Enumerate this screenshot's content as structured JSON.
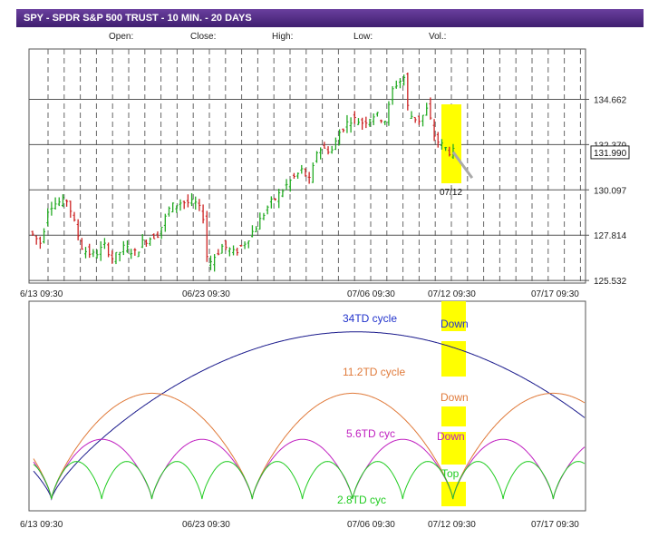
{
  "header": {
    "title": "SPY - SPDR S&P 500 TRUST - 10 MIN. - 20 DAYS",
    "fields": [
      "Open:",
      "Close:",
      "High:",
      "Low:",
      "Vol.:"
    ]
  },
  "chart_data": [
    {
      "type": "candlestick",
      "title": "",
      "y_ticks": [
        134.662,
        132.379,
        130.097,
        127.814,
        125.532
      ],
      "ylim": [
        125.4,
        137.2
      ],
      "x_ticks": [
        "6/13 09:30",
        "06/23 09:30",
        "07/06 09:30",
        "07/12 09:30",
        "07/17 09:30"
      ],
      "last_price": "131.990",
      "annotation": "07/12",
      "anchors": [
        {
          "x": 0,
          "y": 128.0
        },
        {
          "x": 3,
          "y": 127.4
        },
        {
          "x": 5,
          "y": 129.3
        },
        {
          "x": 10,
          "y": 129.6
        },
        {
          "x": 12,
          "y": 128.3
        },
        {
          "x": 14,
          "y": 127.1
        },
        {
          "x": 17,
          "y": 126.8
        },
        {
          "x": 20,
          "y": 127.3
        },
        {
          "x": 22,
          "y": 126.6
        },
        {
          "x": 25,
          "y": 127.2
        },
        {
          "x": 28,
          "y": 126.9
        },
        {
          "x": 30,
          "y": 127.5
        },
        {
          "x": 34,
          "y": 127.9
        },
        {
          "x": 37,
          "y": 129.2
        },
        {
          "x": 40,
          "y": 129.5
        },
        {
          "x": 44,
          "y": 129.4
        },
        {
          "x": 46,
          "y": 128.7
        },
        {
          "x": 47,
          "y": 126.3
        },
        {
          "x": 49,
          "y": 126.8
        },
        {
          "x": 51,
          "y": 127.3
        },
        {
          "x": 54,
          "y": 126.9
        },
        {
          "x": 57,
          "y": 127.5
        },
        {
          "x": 60,
          "y": 128.3
        },
        {
          "x": 63,
          "y": 129.3
        },
        {
          "x": 66,
          "y": 129.9
        },
        {
          "x": 69,
          "y": 130.6
        },
        {
          "x": 72,
          "y": 131.1
        },
        {
          "x": 74,
          "y": 130.5
        },
        {
          "x": 76,
          "y": 132.2
        },
        {
          "x": 80,
          "y": 132.1
        },
        {
          "x": 82,
          "y": 133.1
        },
        {
          "x": 85,
          "y": 133.7
        },
        {
          "x": 88,
          "y": 133.5
        },
        {
          "x": 91,
          "y": 133.9
        },
        {
          "x": 94,
          "y": 133.6
        },
        {
          "x": 96,
          "y": 135.3
        },
        {
          "x": 99,
          "y": 135.8
        },
        {
          "x": 100,
          "y": 133.9
        },
        {
          "x": 103,
          "y": 133.6
        },
        {
          "x": 105,
          "y": 134.2
        },
        {
          "x": 107,
          "y": 132.7
        },
        {
          "x": 109,
          "y": 132.3
        },
        {
          "x": 111,
          "y": 132.0
        }
      ],
      "bar_count": 112,
      "forecast_path": [
        {
          "x": 111,
          "y": 132.0
        },
        {
          "x": 116,
          "y": 130.7
        }
      ]
    },
    {
      "type": "line",
      "title": "",
      "x_ticks": [
        "6/13 09:30",
        "06/23 09:30",
        "07/06 09:30",
        "07/12 09:30",
        "07/17 09:30"
      ],
      "series": [
        {
          "name": "34TD cycle",
          "color": "#1a1a8c",
          "label_color": "#2233cc",
          "period": 34,
          "amp": 0.98,
          "lows": [
            0.8
          ]
        },
        {
          "name": "11.2TD cycle",
          "color": "#e07a3a",
          "label_color": "#e07a3a",
          "period": 11.2,
          "amp": 0.62,
          "lows": [
            0.8,
            12,
            23.2
          ]
        },
        {
          "name": "5.6TD cyc",
          "color": "#c020c0",
          "label_color": "#c020c0",
          "period": 5.6,
          "amp": 0.35,
          "lows": [
            0.8,
            6.4,
            12,
            17.6,
            23.2,
            28.8
          ]
        },
        {
          "name": "2.8TD cyc",
          "color": "#22cc22",
          "label_color": "#22cc22",
          "period": 2.8,
          "amp": 0.22,
          "lows": [
            0.8,
            3.6,
            6.4,
            9.2,
            12,
            14.8,
            17.6,
            20.4,
            23.2,
            26,
            28.8
          ]
        }
      ],
      "signals": [
        "Down",
        "Down",
        "Down",
        "Top"
      ]
    }
  ],
  "colors": {
    "bar_up": "#22aa22",
    "bar_down": "#cc2222",
    "highlight": "#ffff00",
    "forecast": "#aaaaaa",
    "grid": "#666666"
  }
}
